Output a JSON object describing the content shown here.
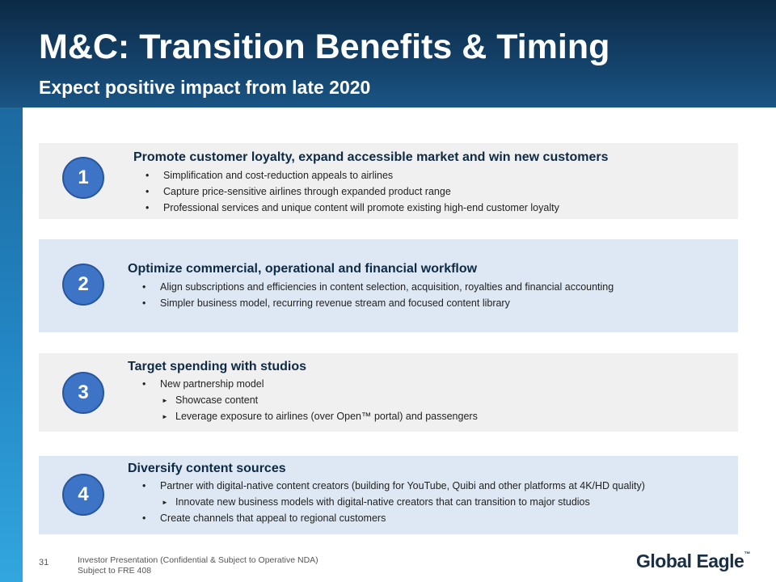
{
  "slide": {
    "title": "M&C: Transition Benefits & Timing",
    "subtitle": "Expect positive impact from late 2020"
  },
  "panels": [
    {
      "number": "1",
      "title": "Promote customer loyalty, expand accessible market and win new customers",
      "bullets": [
        "Simplification and cost-reduction appeals to airlines",
        "Capture price-sensitive airlines through expanded product range",
        "Professional services and unique content will promote existing high-end customer loyalty"
      ]
    },
    {
      "number": "2",
      "title": "Optimize commercial, operational and financial workflow",
      "bullets": [
        "Align subscriptions and efficiencies in content selection, acquisition, royalties and financial accounting",
        "Simpler business model, recurring revenue stream and focused content library"
      ]
    },
    {
      "number": "3",
      "title": "Target spending with studios",
      "bullets": [
        "New partnership model",
        "Showcase content",
        "Leverage exposure to airlines (over Open™ portal) and passengers"
      ]
    },
    {
      "number": "4",
      "title": "Diversify content sources",
      "bullets": [
        "Partner with digital-native content creators (building for YouTube, Quibi and other platforms at 4K/HD quality)",
        "Innovate new business models with digital-native creators that can transition to major studios",
        "Create channels that appeal to regional customers"
      ]
    }
  ],
  "footer": {
    "page_number": "31",
    "line1": "Investor Presentation (Confidential & Subject to Operative NDA)",
    "line2": "Subject to FRE 408",
    "logo_text": "Global Eagle",
    "logo_mark": "™"
  },
  "colors": {
    "header_dark": "#0c2a45",
    "circle_fill": "#3d74c6",
    "panel_gray": "#f0f0f0",
    "panel_blue": "#dde8f4"
  }
}
